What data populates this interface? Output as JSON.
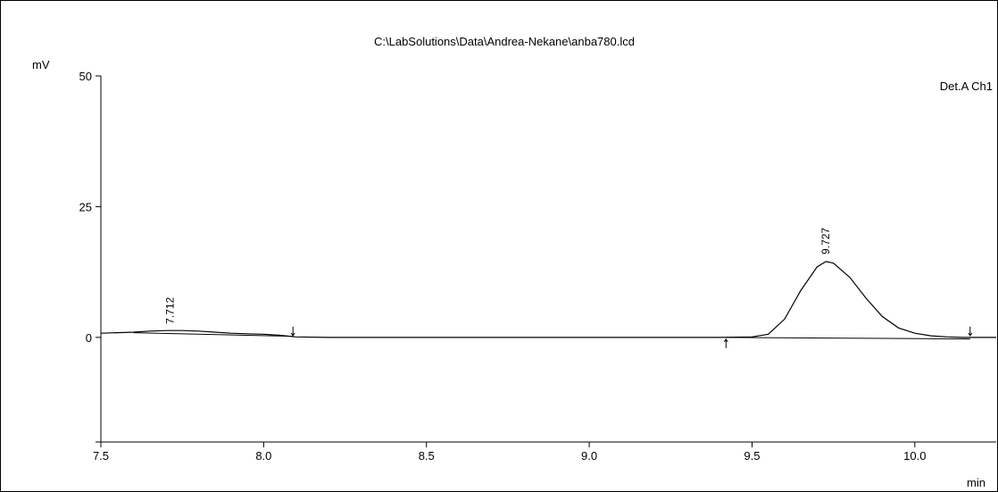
{
  "chart_data": {
    "type": "line",
    "title": "C:\\LabSolutions\\Data\\Andrea-Nekane\\anba780.lcd",
    "ylabel": "mV",
    "xlabel": "min",
    "channel_label": "Det.A Ch1",
    "xlim": [
      7.5,
      10.25
    ],
    "ylim": [
      -20,
      50
    ],
    "x_ticks": [
      7.5,
      8.0,
      8.5,
      9.0,
      9.5,
      10.0
    ],
    "x_tick_labels": [
      "7.5",
      "8.0",
      "8.5",
      "9.0",
      "9.5",
      "10.0"
    ],
    "y_ticks": [
      50,
      25,
      0
    ],
    "y_tick_labels": [
      "50",
      "25",
      "0"
    ],
    "grid": false,
    "peaks": [
      {
        "label": "7.712",
        "rt": 7.712,
        "height": 1.2
      },
      {
        "label": "9.727",
        "rt": 9.727,
        "height": 14.5
      }
    ],
    "integration_markers": [
      {
        "x": 8.09,
        "direction": "down"
      },
      {
        "x": 9.42,
        "direction": "up"
      },
      {
        "x": 10.17,
        "direction": "down"
      }
    ],
    "series": [
      {
        "x": [
          7.5,
          7.55,
          7.6,
          7.65,
          7.7,
          7.75,
          7.8,
          7.85,
          7.9,
          7.95,
          8.0,
          8.05,
          8.1,
          8.2,
          8.4,
          8.6,
          8.8,
          9.0,
          9.2,
          9.4,
          9.5,
          9.55,
          9.6,
          9.65,
          9.7,
          9.727,
          9.75,
          9.8,
          9.85,
          9.9,
          9.95,
          10.0,
          10.05,
          10.1,
          10.15,
          10.2,
          10.25
        ],
        "y": [
          0.8,
          0.9,
          1.0,
          1.2,
          1.3,
          1.3,
          1.2,
          1.0,
          0.8,
          0.7,
          0.6,
          0.4,
          0.1,
          0.0,
          0.0,
          0.0,
          0.0,
          0.0,
          0.0,
          0.0,
          0.1,
          0.6,
          3.5,
          9.0,
          13.5,
          14.5,
          14.2,
          11.5,
          7.5,
          4.0,
          1.8,
          0.8,
          0.3,
          0.1,
          0.0,
          0.0,
          0.0
        ]
      }
    ],
    "baselines": [
      {
        "x": [
          7.6,
          8.09
        ],
        "y": [
          0.9,
          0.2
        ]
      },
      {
        "x": [
          9.42,
          10.17
        ],
        "y": [
          0.0,
          -0.3
        ]
      }
    ]
  }
}
